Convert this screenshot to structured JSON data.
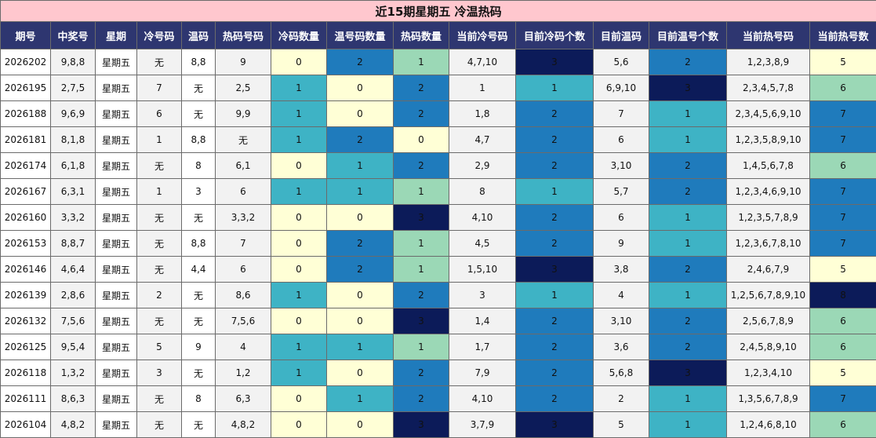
{
  "title": "近15期星期五 冷温热码",
  "headers": [
    "期号",
    "中奖号",
    "星期",
    "冷号码",
    "温码",
    "热码号码",
    "冷码数量",
    "温号码数量",
    "热码数量",
    "当前冷号码",
    "目前冷码个数",
    "目前温码",
    "目前温号个数",
    "当前热号码",
    "当前热号数"
  ],
  "rows": [
    [
      "2026202",
      "9,8,8",
      "星期五",
      "无",
      "8,8",
      "9",
      "0",
      "2",
      "1",
      "4,7,10",
      "3",
      "5,6",
      "2",
      "1,2,3,8,9",
      "5"
    ],
    [
      "2026195",
      "2,7,5",
      "星期五",
      "7",
      "无",
      "2,5",
      "1",
      "0",
      "2",
      "1",
      "1",
      "6,9,10",
      "3",
      "2,3,4,5,7,8",
      "6"
    ],
    [
      "2026188",
      "9,6,9",
      "星期五",
      "6",
      "无",
      "9,9",
      "1",
      "0",
      "2",
      "1,8",
      "2",
      "7",
      "1",
      "2,3,4,5,6,9,10",
      "7"
    ],
    [
      "2026181",
      "8,1,8",
      "星期五",
      "1",
      "8,8",
      "无",
      "1",
      "2",
      "0",
      "4,7",
      "2",
      "6",
      "1",
      "1,2,3,5,8,9,10",
      "7"
    ],
    [
      "2026174",
      "6,1,8",
      "星期五",
      "无",
      "8",
      "6,1",
      "0",
      "1",
      "2",
      "2,9",
      "2",
      "3,10",
      "2",
      "1,4,5,6,7,8",
      "6"
    ],
    [
      "2026167",
      "6,3,1",
      "星期五",
      "1",
      "3",
      "6",
      "1",
      "1",
      "1",
      "8",
      "1",
      "5,7",
      "2",
      "1,2,3,4,6,9,10",
      "7"
    ],
    [
      "2026160",
      "3,3,2",
      "星期五",
      "无",
      "无",
      "3,3,2",
      "0",
      "0",
      "3",
      "4,10",
      "2",
      "6",
      "1",
      "1,2,3,5,7,8,9",
      "7"
    ],
    [
      "2026153",
      "8,8,7",
      "星期五",
      "无",
      "8,8",
      "7",
      "0",
      "2",
      "1",
      "4,5",
      "2",
      "9",
      "1",
      "1,2,3,6,7,8,10",
      "7"
    ],
    [
      "2026146",
      "4,6,4",
      "星期五",
      "无",
      "4,4",
      "6",
      "0",
      "2",
      "1",
      "1,5,10",
      "3",
      "3,8",
      "2",
      "2,4,6,7,9",
      "5"
    ],
    [
      "2026139",
      "2,8,6",
      "星期五",
      "2",
      "无",
      "8,6",
      "1",
      "0",
      "2",
      "3",
      "1",
      "4",
      "1",
      "1,2,5,6,7,8,9,10",
      "8"
    ],
    [
      "2026132",
      "7,5,6",
      "星期五",
      "无",
      "无",
      "7,5,6",
      "0",
      "0",
      "3",
      "1,4",
      "2",
      "3,10",
      "2",
      "2,5,6,7,8,9",
      "6"
    ],
    [
      "2026125",
      "9,5,4",
      "星期五",
      "5",
      "9",
      "4",
      "1",
      "1",
      "1",
      "1,7",
      "2",
      "3,6",
      "2",
      "2,4,5,8,9,10",
      "6"
    ],
    [
      "2026118",
      "1,3,2",
      "星期五",
      "3",
      "无",
      "1,2",
      "1",
      "0",
      "2",
      "7,9",
      "2",
      "5,6,8",
      "3",
      "1,2,3,4,10",
      "5"
    ],
    [
      "2026111",
      "8,6,3",
      "星期五",
      "无",
      "8",
      "6,3",
      "0",
      "1",
      "2",
      "4,10",
      "2",
      "2",
      "1",
      "1,3,5,6,7,8,9",
      "7"
    ],
    [
      "2026104",
      "4,8,2",
      "星期五",
      "无",
      "无",
      "4,8,2",
      "0",
      "0",
      "3",
      "3,7,9",
      "3",
      "5",
      "1",
      "1,2,4,6,8,10",
      "6"
    ]
  ],
  "colors": {
    "title_bg": "#ffc7ce",
    "header_bg": "#2e3670",
    "level_0": "#ffffd6",
    "level_1": "#3eb3c5",
    "level_2": "#1f7bbc",
    "level_3": "#0c1b59",
    "heat_mid": "#9bd8b6"
  }
}
